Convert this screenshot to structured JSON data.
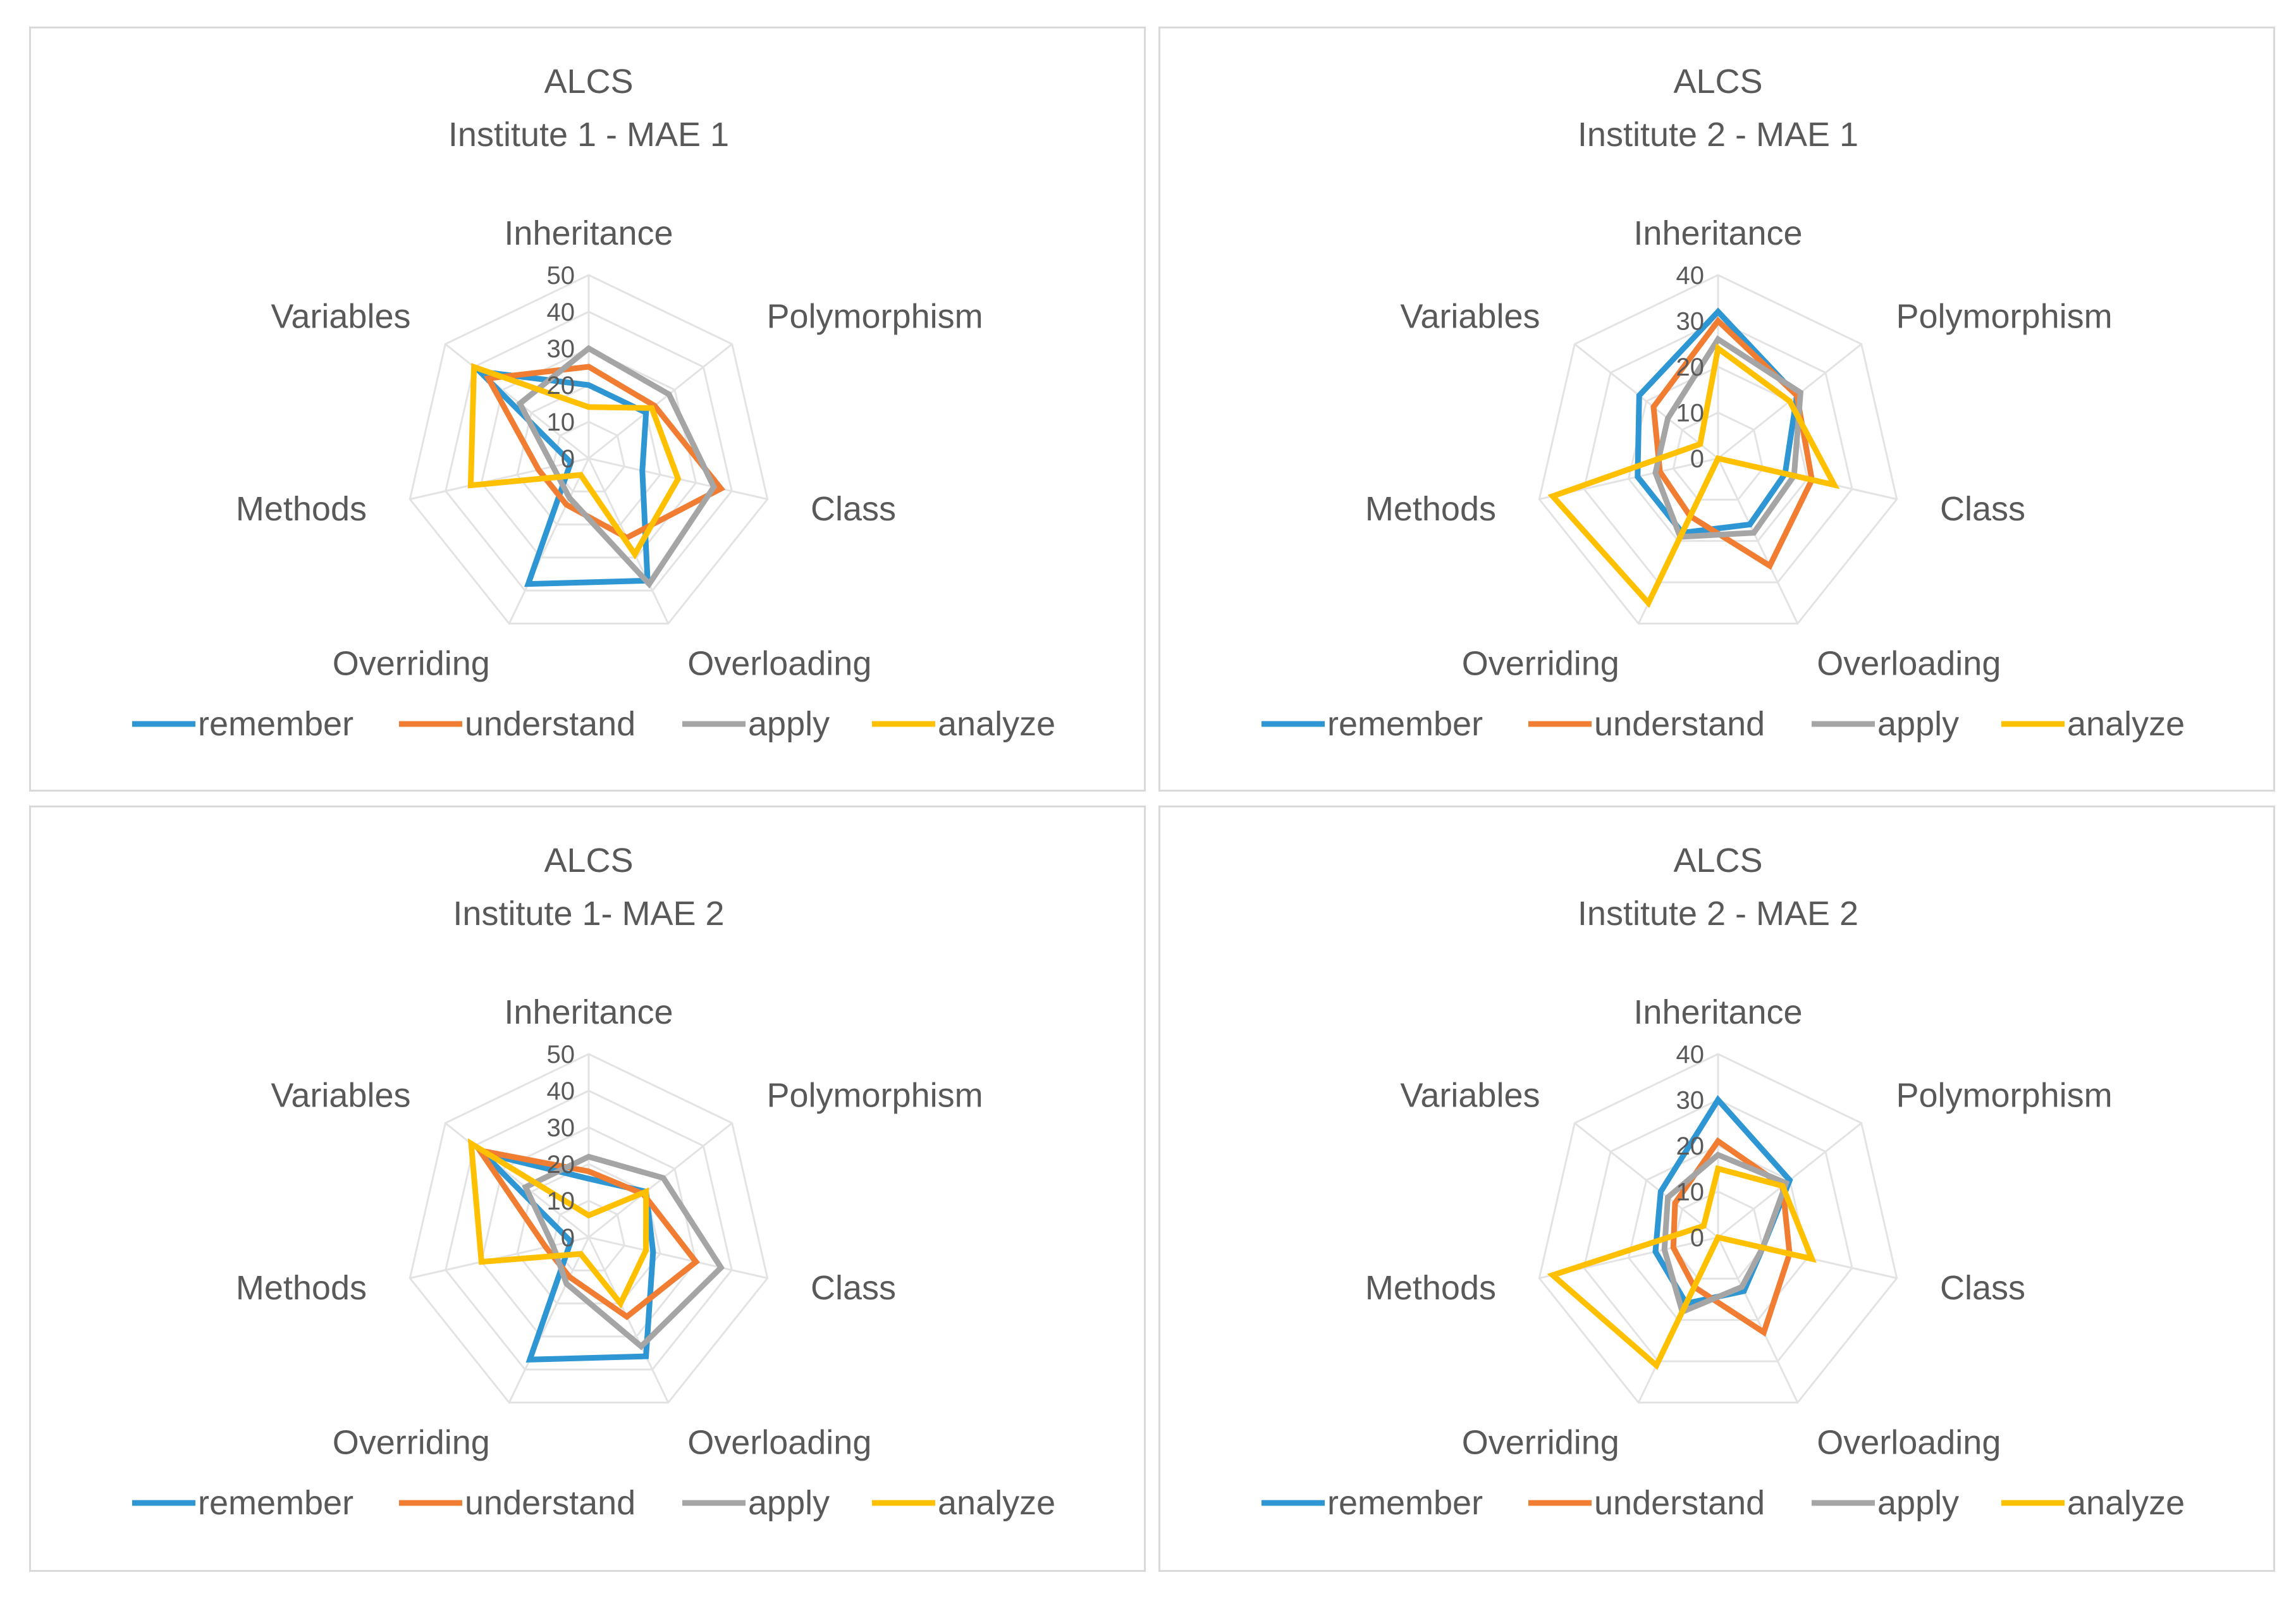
{
  "chart_data": [
    {
      "type": "radar",
      "title_line1": "ALCS",
      "title_line2": "Institute 1 - MAE 1",
      "axes": [
        "Inheritance",
        "Polymorphism",
        "Class",
        "Overloading",
        "Overriding",
        "Methods",
        "Variables"
      ],
      "ticks": [
        "0",
        "10",
        "20",
        "30",
        "40",
        "50"
      ],
      "tick_values": [
        0,
        10,
        20,
        30,
        40,
        50
      ],
      "rmax": 50,
      "legend_position": "bottom",
      "series": [
        {
          "name": "remember",
          "color": "#2e96d3",
          "values": [
            20,
            20,
            15,
            37,
            38,
            5,
            38
          ]
        },
        {
          "name": "understand",
          "color": "#f07d32",
          "values": [
            25,
            23,
            37,
            24,
            14,
            14,
            35
          ]
        },
        {
          "name": "apply",
          "color": "#a5a5a5",
          "values": [
            30,
            28,
            35,
            38,
            12,
            10,
            24
          ]
        },
        {
          "name": "analyze",
          "color": "#ffc000",
          "values": [
            14,
            22,
            25,
            29,
            5,
            33,
            40
          ]
        }
      ]
    },
    {
      "type": "radar",
      "title_line1": "ALCS",
      "title_line2": "Institute 2 - MAE 1",
      "axes": [
        "Inheritance",
        "Polymorphism",
        "Class",
        "Overloading",
        "Overriding",
        "Methods",
        "Variables"
      ],
      "ticks": [
        "0",
        "10",
        "20",
        "30",
        "40"
      ],
      "tick_values": [
        0,
        10,
        20,
        30,
        40
      ],
      "rmax": 40,
      "legend_position": "bottom",
      "series": [
        {
          "name": "remember",
          "color": "#2e96d3",
          "values": [
            32,
            22,
            15,
            16,
            18,
            18,
            22
          ]
        },
        {
          "name": "understand",
          "color": "#f07d32",
          "values": [
            30,
            22,
            21,
            26,
            14,
            13,
            18
          ]
        },
        {
          "name": "apply",
          "color": "#a5a5a5",
          "values": [
            26,
            23,
            17,
            18,
            19,
            14,
            14
          ]
        },
        {
          "name": "analyze",
          "color": "#ffc000",
          "values": [
            24,
            20,
            26,
            0,
            35,
            37,
            5
          ]
        }
      ]
    },
    {
      "type": "radar",
      "title_line1": "ALCS",
      "title_line2": "Institute 1- MAE 2",
      "axes": [
        "Inheritance",
        "Polymorphism",
        "Class",
        "Overloading",
        "Overriding",
        "Methods",
        "Variables"
      ],
      "ticks": [
        "0",
        "10",
        "20",
        "30",
        "40",
        "50"
      ],
      "tick_values": [
        0,
        10,
        20,
        30,
        40,
        50
      ],
      "rmax": 50,
      "legend_position": "bottom",
      "series": [
        {
          "name": "remember",
          "color": "#2e96d3",
          "values": [
            16,
            20,
            18,
            36,
            37,
            5,
            37
          ]
        },
        {
          "name": "understand",
          "color": "#f07d32",
          "values": [
            18,
            19,
            30,
            24,
            12,
            12,
            38
          ]
        },
        {
          "name": "apply",
          "color": "#a5a5a5",
          "values": [
            22,
            26,
            37,
            33,
            14,
            10,
            22
          ]
        },
        {
          "name": "analyze",
          "color": "#ffc000",
          "values": [
            6,
            20,
            16,
            20,
            5,
            30,
            41
          ]
        }
      ]
    },
    {
      "type": "radar",
      "title_line1": "ALCS",
      "title_line2": "Institute 2 - MAE 2",
      "axes": [
        "Inheritance",
        "Polymorphism",
        "Class",
        "Overloading",
        "Overriding",
        "Methods",
        "Variables"
      ],
      "ticks": [
        "0",
        "10",
        "20",
        "30",
        "40"
      ],
      "tick_values": [
        0,
        10,
        20,
        30,
        40
      ],
      "rmax": 40,
      "legend_position": "bottom",
      "series": [
        {
          "name": "remember",
          "color": "#2e96d3",
          "values": [
            30,
            20,
            10,
            13,
            16,
            14,
            16
          ]
        },
        {
          "name": "understand",
          "color": "#f07d32",
          "values": [
            21,
            18,
            16,
            23,
            12,
            10,
            12
          ]
        },
        {
          "name": "apply",
          "color": "#a5a5a5",
          "values": [
            18,
            19,
            10,
            12,
            18,
            12,
            14
          ]
        },
        {
          "name": "analyze",
          "color": "#ffc000",
          "values": [
            15,
            18,
            21,
            0,
            31,
            37,
            4
          ]
        }
      ]
    }
  ]
}
